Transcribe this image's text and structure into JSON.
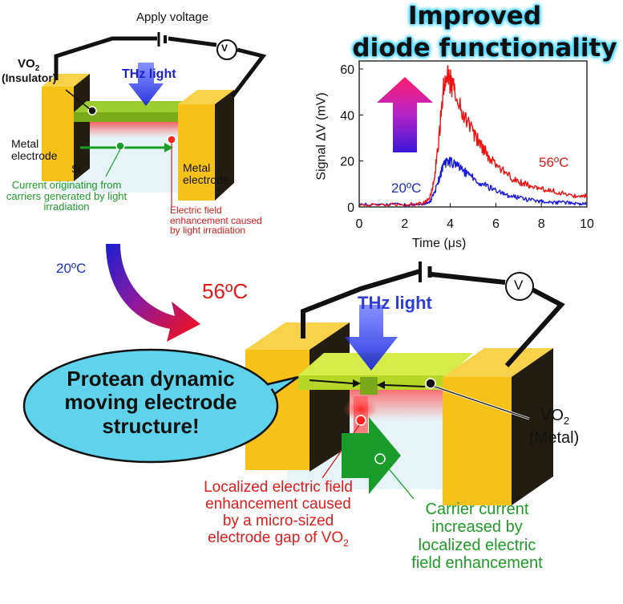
{
  "title": {
    "line1": "Improved",
    "line2": "diode functionality"
  },
  "top_diagram": {
    "apply_voltage": "Apply voltage",
    "voltmeter": "V",
    "vo2_label": "VO",
    "vo2_sub": "2",
    "vo2_state": "(Insulator)",
    "thz_light": "THz light",
    "metal_electrode_left": [
      "Metal",
      "electrode"
    ],
    "metal_electrode_right": [
      "Metal",
      "electrode"
    ],
    "si": "Si",
    "current_note": [
      "Current originating from",
      "carriers generated by light",
      "irradiation"
    ],
    "field_note": [
      "Electric field",
      "enhancement caused",
      "by light irradiation"
    ]
  },
  "temps": {
    "low": "20ºC",
    "high": "56ºC"
  },
  "bottom_diagram": {
    "voltmeter": "V",
    "thz_light": "THz light",
    "vo2_label": "VO",
    "vo2_sub": "2",
    "vo2_state": "(Metal)",
    "bubble": [
      "Protean dynamic",
      "moving electrode",
      "structure!"
    ],
    "local_field_note": [
      "Localized electric field",
      "enhancement caused",
      "by a micro-sized",
      "electrode gap of VO"
    ],
    "local_field_sub": "2",
    "carrier_note": [
      "Carrier current",
      "increased by",
      "localized electric",
      "field enhancement"
    ]
  },
  "chart_data": {
    "type": "line",
    "xlabel": "Time (μs)",
    "ylabel": "Signal ΔV (mV)",
    "xlim": [
      0,
      10
    ],
    "ylim": [
      0,
      60
    ],
    "xticks": [
      0,
      2,
      4,
      6,
      8,
      10
    ],
    "yticks": [
      0,
      20,
      40,
      60
    ],
    "grid": false,
    "series": [
      {
        "name": "56ºC",
        "color": "#f01010",
        "x": [
          0,
          1,
          2,
          2.8,
          3.1,
          3.3,
          3.5,
          3.7,
          3.9,
          4.1,
          4.4,
          4.8,
          5.2,
          5.6,
          6.0,
          6.5,
          7.0,
          7.5,
          8.0,
          8.5,
          9.0,
          9.5,
          10
        ],
        "y": [
          1,
          1,
          1,
          1.5,
          4,
          12,
          30,
          52,
          57,
          52,
          44,
          36,
          29,
          23,
          18,
          14,
          11,
          9,
          8,
          7,
          6,
          5,
          5
        ]
      },
      {
        "name": "20ºC",
        "color": "#1a1ae0",
        "x": [
          0,
          1,
          2,
          2.8,
          3.1,
          3.3,
          3.5,
          3.7,
          3.9,
          4.1,
          4.4,
          4.8,
          5.2,
          5.6,
          6.0,
          6.5,
          7.0,
          7.5,
          8.0,
          8.5,
          9.0,
          9.5,
          10
        ],
        "y": [
          1,
          1,
          1,
          1,
          2,
          6,
          12,
          18,
          20,
          19,
          17,
          14,
          11,
          9,
          7,
          5,
          4,
          3,
          2.5,
          2,
          2,
          1.5,
          1.5
        ]
      }
    ]
  },
  "colors": {
    "electrode": "#f6c218",
    "electrode_dark": "#1e1a10",
    "vo2_green": "#8fc81e",
    "bubble": "#5fd3ec",
    "arrow_green": "#1a9c2a"
  }
}
